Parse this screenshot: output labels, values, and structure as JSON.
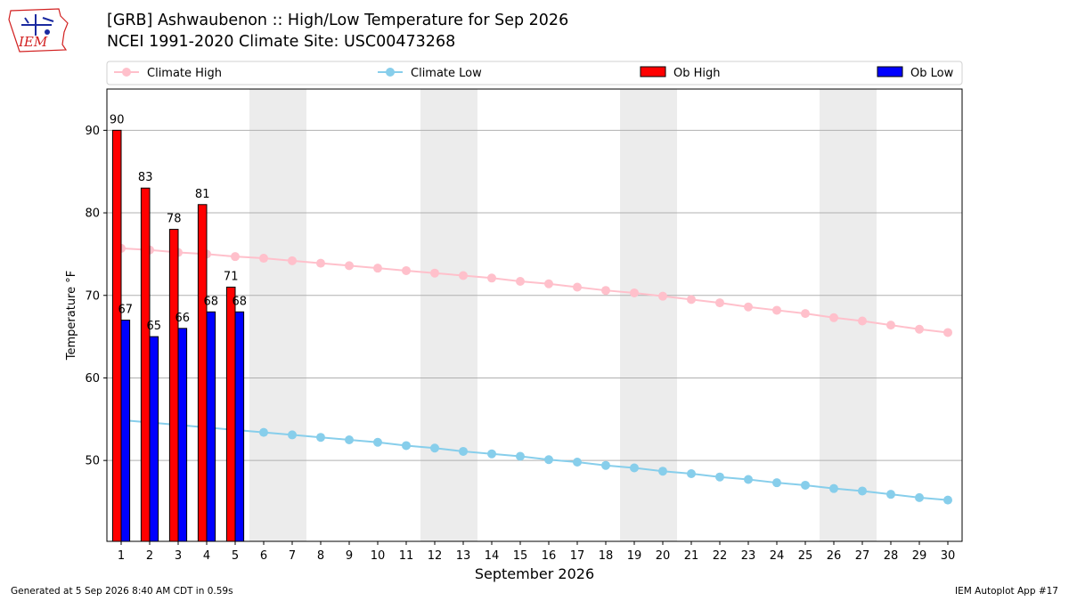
{
  "header": {
    "title": "[GRB] Ashwaubenon :: High/Low Temperature for Sep 2026",
    "subtitle": "NCEI 1991-2020 Climate Site: USC00473268"
  },
  "logo": {
    "text": "IEM",
    "color": "#d22020",
    "icon": "iowa-state-outline-logo"
  },
  "footer": {
    "left": "Generated at 5 Sep 2026 8:40 AM CDT in 0.59s",
    "right": "IEM Autoplot App #17"
  },
  "chart_data": {
    "type": "bar",
    "title": "[GRB] Ashwaubenon :: High/Low Temperature for Sep 2026",
    "subtitle": "NCEI 1991-2020 Climate Site: USC00473268",
    "xlabel": "September 2026",
    "ylabel": "Temperature °F",
    "ylim": [
      40.2,
      95
    ],
    "xlim": [
      0.5,
      30.5
    ],
    "yticks": [
      50,
      60,
      70,
      80,
      90
    ],
    "x": [
      1,
      2,
      3,
      4,
      5,
      6,
      7,
      8,
      9,
      10,
      11,
      12,
      13,
      14,
      15,
      16,
      17,
      18,
      19,
      20,
      21,
      22,
      23,
      24,
      25,
      26,
      27,
      28,
      29,
      30
    ],
    "weekend_days": [
      6,
      7,
      12,
      13,
      19,
      20,
      26,
      27
    ],
    "grid": "horizontal",
    "legend_position": "top",
    "series": [
      {
        "name": "Climate High",
        "kind": "line",
        "color": "#ffc0cb",
        "values": [
          75.7,
          75.5,
          75.2,
          75.0,
          74.7,
          74.5,
          74.2,
          73.9,
          73.6,
          73.3,
          73.0,
          72.7,
          72.4,
          72.1,
          71.7,
          71.4,
          71.0,
          70.6,
          70.3,
          69.9,
          69.5,
          69.1,
          68.6,
          68.2,
          67.8,
          67.3,
          66.9,
          66.4,
          65.9,
          65.5
        ]
      },
      {
        "name": "Climate Low",
        "kind": "line",
        "color": "#87ceeb",
        "values": [
          54.9,
          54.6,
          54.3,
          54.0,
          53.7,
          53.4,
          53.1,
          52.8,
          52.5,
          52.2,
          51.8,
          51.5,
          51.1,
          50.8,
          50.5,
          50.1,
          49.8,
          49.4,
          49.1,
          48.7,
          48.4,
          48.0,
          47.7,
          47.3,
          47.0,
          46.6,
          46.3,
          45.9,
          45.5,
          45.2
        ]
      },
      {
        "name": "Ob High",
        "kind": "bar",
        "color": "#ff0000",
        "x": [
          1,
          2,
          3,
          4,
          5
        ],
        "values": [
          90,
          83,
          78,
          81,
          71
        ]
      },
      {
        "name": "Ob Low",
        "kind": "bar",
        "color": "#0000ff",
        "x": [
          1,
          2,
          3,
          4,
          5
        ],
        "values": [
          67,
          65,
          66,
          68,
          68
        ]
      }
    ]
  }
}
